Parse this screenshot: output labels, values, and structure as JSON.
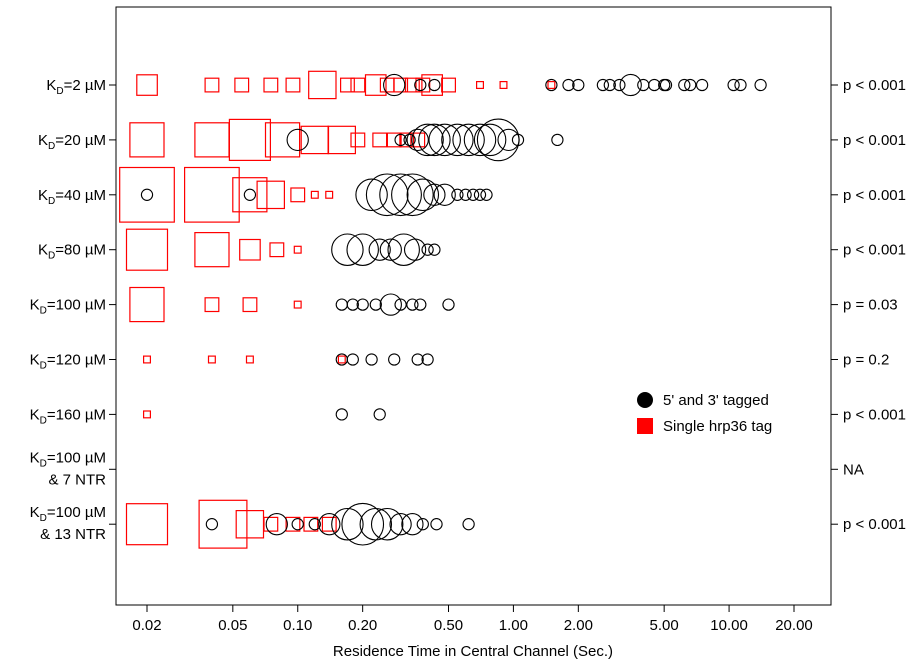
{
  "chart_data": {
    "type": "scatter",
    "title": "",
    "xlabel": "Residence Time in Central Channel (Sec.)",
    "ylabel": "",
    "x_scale": "log",
    "xlim": [
      0.015,
      25
    ],
    "x_ticks": [
      "0.02",
      "0.05",
      "0.10",
      "0.20",
      "0.50",
      "1.00",
      "2.00",
      "5.00",
      "10.00",
      "20.00"
    ],
    "x_tick_values": [
      0.02,
      0.05,
      0.1,
      0.2,
      0.5,
      1,
      2,
      5,
      10,
      20
    ],
    "grid": false,
    "legend_position": "right",
    "colors": {
      "circle": "#000000",
      "square": "#ff0000"
    },
    "legend": [
      {
        "label": "5' and 3' tagged",
        "marker": "circle",
        "color": "#000000"
      },
      {
        "label": "Single hrp36 tag",
        "marker": "square",
        "color": "#ff0000"
      }
    ],
    "rows": [
      {
        "label_main": "K",
        "label_sub": "D",
        "label_rest": "=2 µM",
        "label_line2": "",
        "p_value": "p < 0.001",
        "squares": [
          [
            0.02,
            3
          ],
          [
            0.04,
            2
          ],
          [
            0.055,
            2
          ],
          [
            0.075,
            2
          ],
          [
            0.095,
            2
          ],
          [
            0.13,
            4
          ],
          [
            0.17,
            2
          ],
          [
            0.19,
            2
          ],
          [
            0.23,
            3
          ],
          [
            0.26,
            2
          ],
          [
            0.3,
            2
          ],
          [
            0.34,
            2
          ],
          [
            0.38,
            2
          ],
          [
            0.42,
            3
          ],
          [
            0.5,
            2
          ],
          [
            0.7,
            1
          ],
          [
            0.9,
            1
          ],
          [
            1.5,
            1
          ]
        ],
        "circles": [
          [
            0.28,
            2
          ],
          [
            0.37,
            1
          ],
          [
            0.43,
            1
          ],
          [
            1.5,
            1
          ],
          [
            1.8,
            1
          ],
          [
            2.0,
            1
          ],
          [
            2.6,
            1
          ],
          [
            2.8,
            1
          ],
          [
            3.1,
            1
          ],
          [
            3.5,
            2
          ],
          [
            4.0,
            1
          ],
          [
            4.5,
            1
          ],
          [
            5.0,
            1
          ],
          [
            5.1,
            1
          ],
          [
            6.2,
            1
          ],
          [
            6.6,
            1
          ],
          [
            7.5,
            1
          ],
          [
            10.5,
            1
          ],
          [
            11.3,
            1
          ],
          [
            14.0,
            1
          ]
        ]
      },
      {
        "label_main": "K",
        "label_sub": "D",
        "label_rest": "=20 µM",
        "label_line2": "",
        "p_value": "p < 0.001",
        "squares": [
          [
            0.02,
            5
          ],
          [
            0.04,
            5
          ],
          [
            0.06,
            6
          ],
          [
            0.085,
            5
          ],
          [
            0.12,
            4
          ],
          [
            0.16,
            4
          ],
          [
            0.19,
            2
          ],
          [
            0.24,
            2
          ],
          [
            0.28,
            2
          ],
          [
            0.32,
            2
          ],
          [
            0.36,
            2
          ]
        ],
        "circles": [
          [
            0.1,
            2
          ],
          [
            0.3,
            1
          ],
          [
            0.33,
            1
          ],
          [
            0.36,
            2
          ],
          [
            0.4,
            3
          ],
          [
            0.43,
            3
          ],
          [
            0.48,
            3
          ],
          [
            0.55,
            3
          ],
          [
            0.62,
            3
          ],
          [
            0.7,
            3
          ],
          [
            0.78,
            3
          ],
          [
            0.85,
            4
          ],
          [
            0.95,
            2
          ],
          [
            1.05,
            1
          ],
          [
            1.6,
            1
          ]
        ]
      },
      {
        "label_main": "K",
        "label_sub": "D",
        "label_rest": "=40 µM",
        "label_line2": "",
        "p_value": "p < 0.001",
        "squares": [
          [
            0.02,
            8
          ],
          [
            0.04,
            8
          ],
          [
            0.06,
            5
          ],
          [
            0.075,
            4
          ],
          [
            0.1,
            2
          ],
          [
            0.12,
            1
          ],
          [
            0.14,
            1
          ]
        ],
        "circles": [
          [
            0.02,
            1
          ],
          [
            0.06,
            1
          ],
          [
            0.22,
            3
          ],
          [
            0.26,
            4
          ],
          [
            0.3,
            4
          ],
          [
            0.34,
            4
          ],
          [
            0.38,
            3
          ],
          [
            0.43,
            2
          ],
          [
            0.48,
            2
          ],
          [
            0.55,
            1
          ],
          [
            0.6,
            1
          ],
          [
            0.65,
            1
          ],
          [
            0.7,
            1
          ],
          [
            0.75,
            1
          ]
        ]
      },
      {
        "label_main": "K",
        "label_sub": "D",
        "label_rest": "=80 µM",
        "label_line2": "",
        "p_value": "p < 0.001",
        "squares": [
          [
            0.02,
            6
          ],
          [
            0.04,
            5
          ],
          [
            0.06,
            3
          ],
          [
            0.08,
            2
          ],
          [
            0.1,
            1
          ]
        ],
        "circles": [
          [
            0.17,
            3
          ],
          [
            0.2,
            3
          ],
          [
            0.24,
            2
          ],
          [
            0.27,
            2
          ],
          [
            0.31,
            3
          ],
          [
            0.35,
            2
          ],
          [
            0.4,
            1
          ],
          [
            0.43,
            1
          ]
        ]
      },
      {
        "label_main": "K",
        "label_sub": "D",
        "label_rest": "=100 µM",
        "label_line2": "",
        "p_value": "p = 0.03",
        "squares": [
          [
            0.02,
            5
          ],
          [
            0.04,
            2
          ],
          [
            0.06,
            2
          ],
          [
            0.1,
            1
          ]
        ],
        "circles": [
          [
            0.16,
            1
          ],
          [
            0.18,
            1
          ],
          [
            0.2,
            1
          ],
          [
            0.23,
            1
          ],
          [
            0.27,
            2
          ],
          [
            0.3,
            1
          ],
          [
            0.34,
            1
          ],
          [
            0.37,
            1
          ],
          [
            0.5,
            1
          ]
        ]
      },
      {
        "label_main": "K",
        "label_sub": "D",
        "label_rest": "=120 µM",
        "label_line2": "",
        "p_value": "p = 0.2",
        "squares": [
          [
            0.02,
            1
          ],
          [
            0.04,
            1
          ],
          [
            0.06,
            1
          ],
          [
            0.16,
            1
          ]
        ],
        "circles": [
          [
            0.16,
            1
          ],
          [
            0.18,
            1
          ],
          [
            0.22,
            1
          ],
          [
            0.28,
            1
          ],
          [
            0.36,
            1
          ],
          [
            0.4,
            1
          ]
        ]
      },
      {
        "label_main": "K",
        "label_sub": "D",
        "label_rest": "=160 µM",
        "label_line2": "",
        "p_value": "p < 0.001",
        "squares": [
          [
            0.02,
            1
          ]
        ],
        "circles": [
          [
            0.16,
            1
          ],
          [
            0.24,
            1
          ]
        ]
      },
      {
        "label_main": "K",
        "label_sub": "D",
        "label_rest": "=100 µM",
        "label_line2": "& 7 NTR",
        "p_value": "NA",
        "squares": [],
        "circles": []
      },
      {
        "label_main": "K",
        "label_sub": "D",
        "label_rest": "=100 µM",
        "label_line2": "& 13 NTR",
        "p_value": "p < 0.001",
        "squares": [
          [
            0.02,
            6
          ],
          [
            0.045,
            7
          ],
          [
            0.06,
            4
          ],
          [
            0.075,
            2
          ],
          [
            0.095,
            2
          ],
          [
            0.115,
            2
          ],
          [
            0.14,
            2
          ]
        ],
        "circles": [
          [
            0.04,
            1
          ],
          [
            0.08,
            2
          ],
          [
            0.1,
            1
          ],
          [
            0.12,
            1
          ],
          [
            0.14,
            2
          ],
          [
            0.17,
            3
          ],
          [
            0.2,
            4
          ],
          [
            0.23,
            3
          ],
          [
            0.26,
            3
          ],
          [
            0.3,
            2
          ],
          [
            0.34,
            2
          ],
          [
            0.38,
            1
          ],
          [
            0.44,
            1
          ],
          [
            0.62,
            1
          ]
        ]
      }
    ]
  }
}
